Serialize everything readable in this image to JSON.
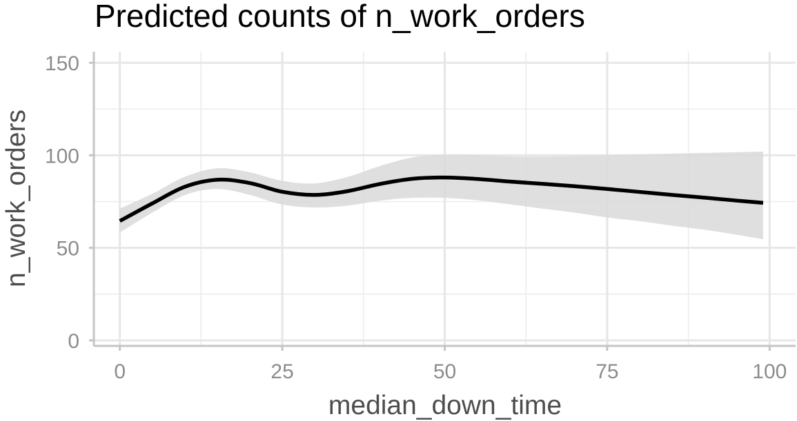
{
  "chart_data": {
    "type": "line",
    "title": "Predicted counts of n_work_orders",
    "xlabel": "median_down_time",
    "ylabel": "n_work_orders",
    "xlim": [
      -4,
      104
    ],
    "ylim": [
      -3,
      156
    ],
    "x_ticks": [
      0,
      25,
      50,
      75,
      100
    ],
    "x_tick_labels": [
      "0",
      "25",
      "50",
      "75",
      "100"
    ],
    "x_minor_ticks": [
      12.5,
      37.5,
      62.5,
      87.5
    ],
    "y_ticks": [
      0,
      50,
      100,
      150
    ],
    "y_tick_labels": [
      "0",
      "50",
      "100",
      "150"
    ],
    "y_minor_ticks": [
      25,
      75,
      125
    ],
    "grid": true,
    "legend": "none",
    "colors": {
      "line": "#000000",
      "ribbon": "#d9d9d9",
      "grid_major": "#e6e6e6",
      "grid_minor": "#ececec",
      "axis": "#c4c4c4",
      "tick_label": "#8c8c8c",
      "axis_title": "#4d4d4d"
    },
    "series": [
      {
        "x": [
          0,
          5,
          10,
          15,
          20,
          25,
          30,
          35,
          40,
          45,
          50,
          55,
          60,
          65,
          70,
          75,
          80,
          85,
          90,
          95,
          99
        ],
        "y": [
          64.5,
          74,
          83,
          86.8,
          85,
          80.3,
          78.6,
          80.6,
          84.5,
          87.3,
          88,
          87.2,
          85.8,
          84.6,
          83.3,
          81.8,
          80.2,
          78.6,
          77.1,
          75.5,
          74.3
        ],
        "lower": [
          58.3,
          69,
          78.5,
          81.8,
          78.6,
          73.4,
          71.8,
          72.8,
          75.5,
          77,
          77,
          75.7,
          73.5,
          71.2,
          69,
          66.4,
          64.4,
          62,
          59.8,
          57,
          54.6
        ],
        "upper": [
          71.2,
          79.2,
          88.4,
          93,
          90.8,
          86.2,
          84.8,
          88.3,
          94.2,
          98.8,
          100.3,
          100,
          99.4,
          99.3,
          99.6,
          100,
          100.5,
          100.9,
          101.3,
          101.7,
          102
        ]
      }
    ]
  }
}
